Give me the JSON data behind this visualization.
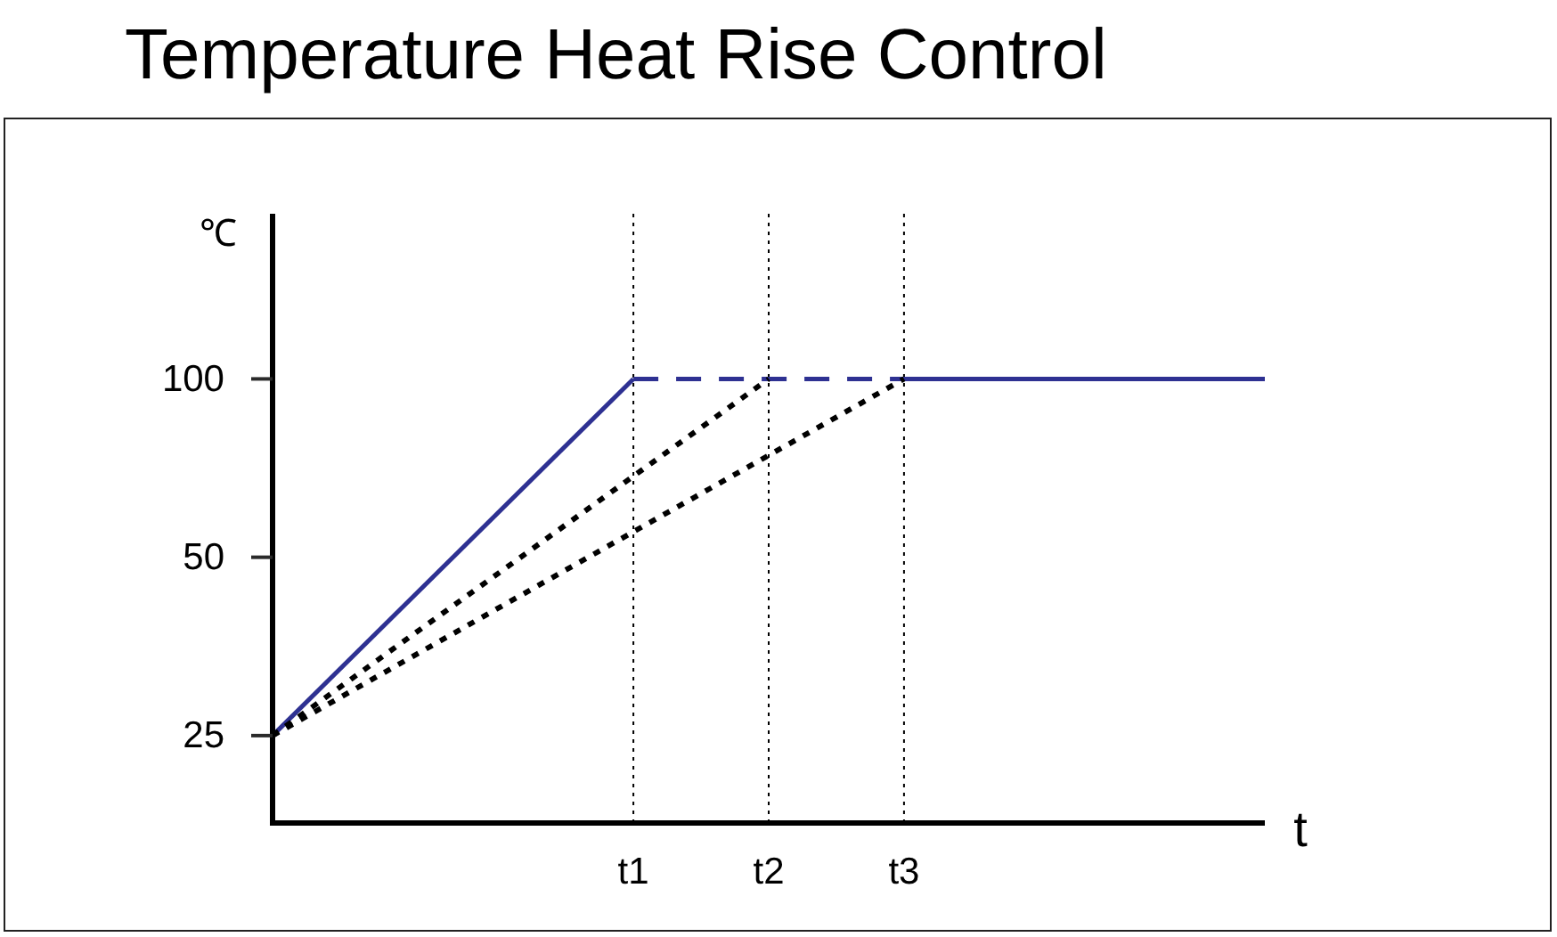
{
  "chart_data": {
    "type": "line",
    "title": "Temperature Heat Rise Control",
    "xlabel": "t",
    "ylabel": "℃",
    "log": "y",
    "ylim": [
      17.8,
      190
    ],
    "yticks": [
      25,
      50,
      100
    ],
    "marker": "none",
    "categories": [
      null,
      null,
      null,
      null,
      null,
      null,
      null,
      null,
      "t1",
      null,
      null,
      "t2",
      null,
      null,
      "t3",
      null,
      null,
      null,
      null,
      null,
      null,
      null,
      null
    ],
    "series": [
      {
        "color": "#2e3192",
        "values": [
          25,
          null,
          null,
          null,
          null,
          null,
          null,
          null,
          100,
          null,
          null,
          null,
          null,
          null,
          null,
          null,
          null,
          null,
          null,
          null,
          null,
          null,
          null
        ],
        "line_style": "solid"
      },
      {
        "color": "#2e3192",
        "values": [
          null,
          null,
          null,
          null,
          null,
          null,
          null,
          null,
          100,
          null,
          null,
          null,
          null,
          null,
          100,
          null,
          null,
          null,
          null,
          null,
          null,
          null,
          null
        ],
        "line_style": "dashed"
      },
      {
        "color": "#2e3192",
        "values": [
          null,
          null,
          null,
          null,
          null,
          null,
          null,
          null,
          null,
          null,
          null,
          null,
          null,
          null,
          100,
          null,
          null,
          null,
          null,
          null,
          null,
          null,
          100
        ],
        "line_style": "solid"
      },
      {
        "color": "#000000",
        "values": [
          25,
          null,
          null,
          null,
          null,
          null,
          null,
          null,
          null,
          null,
          null,
          100,
          null,
          null,
          null,
          null,
          null,
          null,
          null,
          null,
          null,
          null,
          null
        ],
        "line_style": "dotted"
      },
      {
        "color": "#000000",
        "values": [
          25,
          null,
          null,
          null,
          null,
          null,
          null,
          null,
          null,
          null,
          null,
          null,
          null,
          null,
          100,
          null,
          null,
          null,
          null,
          null,
          null,
          null,
          null
        ],
        "line_style": "dotted"
      }
    ],
    "ref_lines": [
      {
        "axis": "x",
        "value": "t1",
        "color": "#000000",
        "line_style": "dotted"
      },
      {
        "axis": "x",
        "value": "t2",
        "color": "#000000",
        "line_style": "dotted"
      },
      {
        "axis": "x",
        "value": "t3",
        "color": "#000000",
        "line_style": "dotted"
      }
    ]
  }
}
